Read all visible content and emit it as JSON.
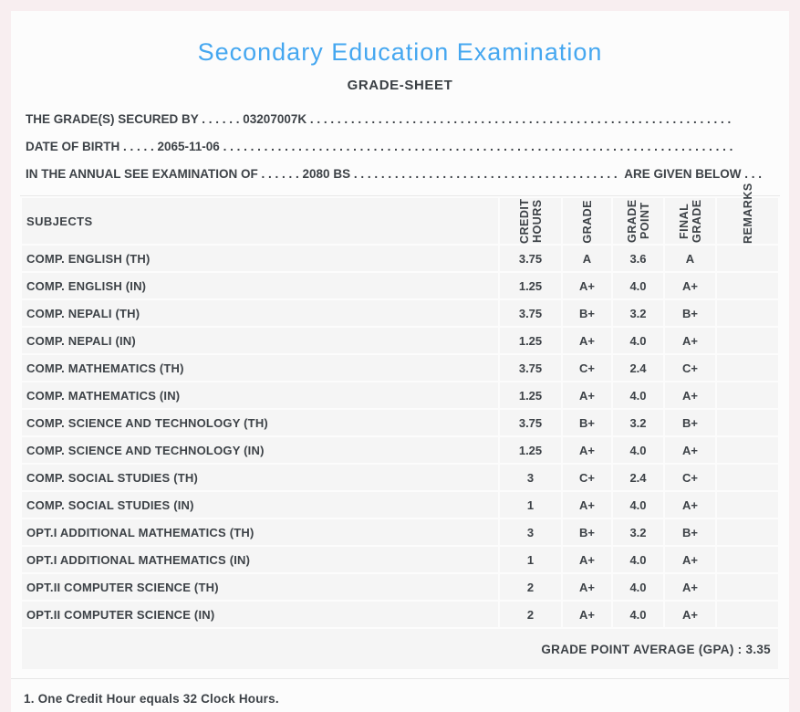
{
  "colors": {
    "page_background": "#f8eef0",
    "panel_background": "#fcfcfc",
    "title_accent": "#45a7f0",
    "row_background": "#f5f5f5",
    "text": "#3d4247"
  },
  "header": {
    "title": "Secondary Education Examination",
    "subtitle": "GRADE-SHEET"
  },
  "info_lines": [
    {
      "before": "THE GRADE(S) SECURED BY . . . . . . ",
      "value": "03207007K",
      "filler": " . . . . . . . . . . . . . . . . . . . . . . . . . . . . . . . . . . . . . . . . . . . . . . . . . . . . . . . . . . . . . . . . . . . . . . . . . . . . . . . . . . . . . . . . . . . . . . . .",
      "suffix": ""
    },
    {
      "before": "DATE OF BIRTH . . . . . ",
      "value": "2065-11-06",
      "filler": " . . . . . . . . . . . . . . . . . . . . . . . . . . . . . . . . . . . . . . . . . . . . . . . . . . . . . . . . . . . . . . . . . . . . . . . . . . . . . . . . . . . . . . . . . . . . . . . .",
      "suffix": ""
    },
    {
      "before": "IN THE ANNUAL SEE EXAMINATION OF . . . . . . ",
      "value": "2080 BS",
      "filler": " . . . . . . . . . . . . . . . . . . . . . . . . . . . . . . . . . . . . . . . . . . . . . . . . . . . . . . . . . . . . . . . . . . . . . . . . . . . . . . . . . . . . . . . . . . . . . . . .",
      "suffix": " ARE GIVEN BELOW . . ."
    }
  ],
  "table": {
    "headers": [
      "SUBJECTS",
      "CREDIT HOURS",
      "GRADE",
      "GRADE POINT",
      "FINAL GRADE",
      "REMARKS"
    ],
    "rows": [
      [
        "COMP. ENGLISH (TH)",
        "3.75",
        "A",
        "3.6",
        "A",
        ""
      ],
      [
        "COMP. ENGLISH (IN)",
        "1.25",
        "A+",
        "4.0",
        "A+",
        ""
      ],
      [
        "COMP. NEPALI (TH)",
        "3.75",
        "B+",
        "3.2",
        "B+",
        ""
      ],
      [
        "COMP. NEPALI (IN)",
        "1.25",
        "A+",
        "4.0",
        "A+",
        ""
      ],
      [
        "COMP. MATHEMATICS (TH)",
        "3.75",
        "C+",
        "2.4",
        "C+",
        ""
      ],
      [
        "COMP. MATHEMATICS (IN)",
        "1.25",
        "A+",
        "4.0",
        "A+",
        ""
      ],
      [
        "COMP. SCIENCE AND TECHNOLOGY (TH)",
        "3.75",
        "B+",
        "3.2",
        "B+",
        ""
      ],
      [
        "COMP. SCIENCE AND TECHNOLOGY (IN)",
        "1.25",
        "A+",
        "4.0",
        "A+",
        ""
      ],
      [
        "COMP. SOCIAL STUDIES (TH)",
        "3",
        "C+",
        "2.4",
        "C+",
        ""
      ],
      [
        "COMP. SOCIAL STUDIES (IN)",
        "1",
        "A+",
        "4.0",
        "A+",
        ""
      ],
      [
        "OPT.I ADDITIONAL MATHEMATICS (TH)",
        "3",
        "B+",
        "3.2",
        "B+",
        ""
      ],
      [
        "OPT.I ADDITIONAL MATHEMATICS (IN)",
        "1",
        "A+",
        "4.0",
        "A+",
        ""
      ],
      [
        "OPT.II COMPUTER SCIENCE (TH)",
        "2",
        "A+",
        "4.0",
        "A+",
        ""
      ],
      [
        "OPT.II COMPUTER SCIENCE (IN)",
        "2",
        "A+",
        "4.0",
        "A+",
        ""
      ]
    ],
    "summary": "GRADE POINT AVERAGE (GPA) : 3.35"
  },
  "footer": {
    "note": "1. One Credit Hour equals 32 Clock Hours."
  }
}
